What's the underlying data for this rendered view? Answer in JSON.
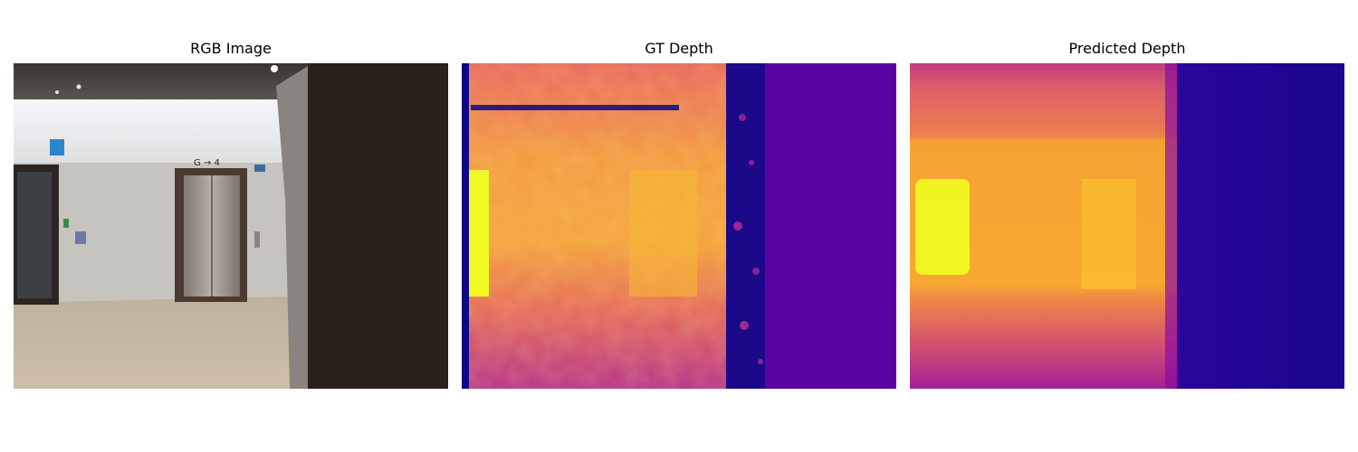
{
  "panels": [
    {
      "title": "RGB Image",
      "content": "rgb-photo"
    },
    {
      "title": "GT Depth",
      "content": "depth-map",
      "colormap": "plasma"
    },
    {
      "title": "Predicted Depth",
      "content": "depth-map",
      "colormap": "plasma"
    }
  ],
  "rgb": {
    "sign_text": "G → 4"
  },
  "colors": {
    "plasma_dark": "#0d0887",
    "plasma_purple": "#6a00a8",
    "plasma_magenta": "#b12a90",
    "plasma_orange": "#e16462",
    "plasma_amber": "#fca636",
    "plasma_yellow": "#f0f921",
    "wall_gray": "#c9c7c2",
    "floor_beige": "#c8bba6",
    "dark_panel": "#2a1f1a"
  }
}
